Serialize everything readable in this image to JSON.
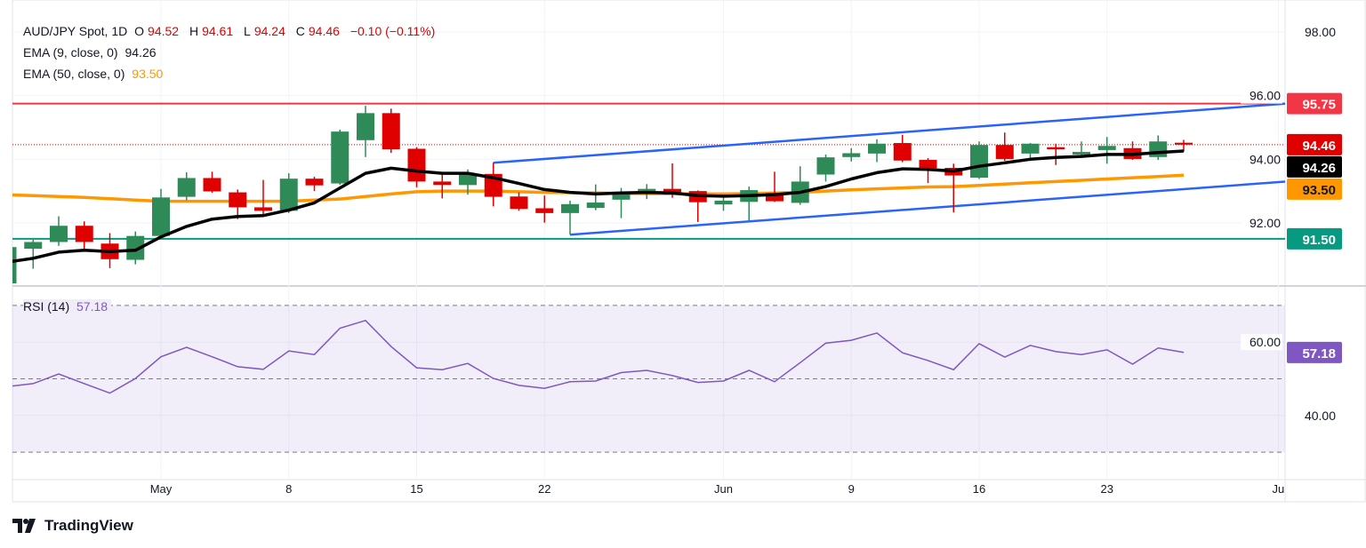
{
  "legend": {
    "symbol": "AUD/JPY Spot, 1D",
    "open_label": "O",
    "open": "94.52",
    "high_label": "H",
    "high": "94.61",
    "low_label": "L",
    "low": "94.24",
    "close_label": "C",
    "close": "94.46",
    "change": "−0.10 (−0.11%)",
    "ema9_label": "EMA (9, close, 0)",
    "ema9_value": "94.26",
    "ema50_label": "EMA (50, close, 0)",
    "ema50_value": "93.50",
    "rsi_label": "RSI (14)",
    "rsi_value": "57.18"
  },
  "branding": {
    "name": "TradingView"
  },
  "colors": {
    "up": "#2e8b57",
    "down": "#e00000",
    "ema9": "#000000",
    "ema50": "#ff9800",
    "channel": "#2962ff",
    "resistance": "#f23645",
    "support": "#089981",
    "rsi": "#7e57c2"
  },
  "chart_data": {
    "type": "candlestick",
    "title": "AUD/JPY Spot, 1D",
    "ylim": [
      89.8,
      98.9
    ],
    "y_ticks": [
      "98.00",
      "96.00",
      "94.00",
      "92.00"
    ],
    "x_ticks": [
      {
        "label": "May",
        "bar": 0
      },
      {
        "label": "8",
        "bar": 5
      },
      {
        "label": "15",
        "bar": 10
      },
      {
        "label": "22",
        "bar": 15
      },
      {
        "label": "Jun",
        "bar": 22
      },
      {
        "label": "9",
        "bar": 27
      },
      {
        "label": "16",
        "bar": 32
      },
      {
        "label": "23",
        "bar": 37
      },
      {
        "label": "Ju",
        "bar": 43.7
      }
    ],
    "first_bar": -6,
    "candles": [
      [
        90.1,
        91.25,
        90.0,
        91.24
      ],
      [
        91.19,
        91.47,
        90.56,
        91.4
      ],
      [
        91.4,
        92.21,
        91.28,
        91.91
      ],
      [
        91.91,
        92.05,
        91.19,
        91.4
      ],
      [
        91.35,
        91.68,
        90.58,
        90.86
      ],
      [
        90.84,
        91.73,
        90.7,
        91.59
      ],
      [
        91.59,
        93.07,
        91.55,
        92.8
      ],
      [
        92.82,
        93.59,
        92.71,
        93.41
      ],
      [
        93.41,
        93.61,
        92.95,
        92.99
      ],
      [
        92.96,
        93.05,
        92.12,
        92.49
      ],
      [
        92.49,
        93.35,
        92.21,
        92.38
      ],
      [
        92.38,
        93.56,
        92.31,
        93.39
      ],
      [
        93.39,
        93.45,
        93.0,
        93.18
      ],
      [
        93.24,
        94.93,
        93.2,
        94.87
      ],
      [
        94.6,
        95.68,
        94.07,
        95.45
      ],
      [
        95.45,
        95.59,
        94.2,
        94.31
      ],
      [
        94.33,
        94.38,
        93.12,
        93.3
      ],
      [
        93.3,
        93.52,
        92.77,
        93.19
      ],
      [
        93.19,
        93.68,
        92.89,
        93.54
      ],
      [
        93.54,
        93.89,
        92.52,
        92.82
      ],
      [
        92.83,
        92.96,
        92.38,
        92.44
      ],
      [
        92.46,
        92.86,
        92.01,
        92.31
      ],
      [
        92.31,
        92.7,
        91.63,
        92.59
      ],
      [
        92.47,
        93.21,
        92.4,
        92.64
      ],
      [
        92.73,
        93.1,
        92.15,
        92.98
      ],
      [
        92.98,
        93.22,
        92.75,
        93.07
      ],
      [
        93.07,
        93.87,
        92.79,
        92.89
      ],
      [
        93.0,
        93.02,
        92.03,
        92.65
      ],
      [
        92.58,
        92.86,
        92.38,
        92.7
      ],
      [
        92.66,
        93.14,
        92.07,
        93.03
      ],
      [
        92.94,
        93.61,
        92.66,
        92.68
      ],
      [
        92.63,
        93.78,
        92.57,
        93.3
      ],
      [
        93.52,
        94.15,
        93.3,
        94.06
      ],
      [
        94.07,
        94.35,
        93.93,
        94.19
      ],
      [
        94.18,
        94.63,
        93.91,
        94.49
      ],
      [
        94.51,
        94.77,
        93.91,
        93.96
      ],
      [
        93.98,
        94.04,
        93.25,
        93.72
      ],
      [
        93.73,
        93.86,
        92.33,
        93.49
      ],
      [
        93.42,
        94.56,
        93.38,
        94.45
      ],
      [
        94.45,
        94.84,
        93.95,
        94.01
      ],
      [
        94.18,
        94.51,
        93.95,
        94.49
      ],
      [
        94.38,
        94.49,
        93.82,
        94.31
      ],
      [
        94.15,
        94.56,
        94.09,
        94.23
      ],
      [
        94.29,
        94.7,
        93.86,
        94.42
      ],
      [
        94.35,
        94.56,
        93.98,
        94.01
      ],
      [
        94.07,
        94.75,
        93.98,
        94.56
      ],
      [
        94.52,
        94.61,
        94.24,
        94.46
      ]
    ],
    "candle_fields": [
      "open",
      "high",
      "low",
      "close"
    ],
    "ema9": [
      90.77,
      90.89,
      91.08,
      91.14,
      91.1,
      91.14,
      91.56,
      91.89,
      92.12,
      92.2,
      92.23,
      92.4,
      92.63,
      93.1,
      93.56,
      93.72,
      93.63,
      93.56,
      93.56,
      93.42,
      93.24,
      93.05,
      92.96,
      92.91,
      92.94,
      92.96,
      92.94,
      92.86,
      92.84,
      92.86,
      92.89,
      92.96,
      93.14,
      93.38,
      93.58,
      93.7,
      93.68,
      93.63,
      93.78,
      93.89,
      94.0,
      94.06,
      94.09,
      94.15,
      94.15,
      94.21,
      94.26
    ],
    "ema50": [
      92.88,
      92.86,
      92.83,
      92.8,
      92.76,
      92.72,
      92.68,
      92.68,
      92.68,
      92.68,
      92.68,
      92.68,
      92.72,
      92.75,
      92.83,
      92.91,
      92.98,
      93.0,
      93.0,
      93.0,
      92.98,
      92.96,
      92.95,
      92.94,
      92.93,
      92.92,
      92.92,
      92.91,
      92.91,
      92.92,
      92.94,
      92.96,
      93.0,
      93.04,
      93.07,
      93.1,
      93.13,
      93.14,
      93.18,
      93.22,
      93.26,
      93.3,
      93.34,
      93.38,
      93.42,
      93.46,
      93.5
    ],
    "horizontal_lines": [
      {
        "label": "95.75",
        "price": 95.75,
        "color": "#f23645"
      },
      {
        "label": "91.50",
        "price": 91.5,
        "color": "#089981"
      }
    ],
    "last_price_line": 94.46,
    "channel": [
      {
        "from": {
          "bar": 13,
          "price": 93.89
        },
        "to": {
          "bar": 44.0,
          "price": 95.75
        }
      },
      {
        "from": {
          "bar": 16,
          "price": 91.63
        },
        "to": {
          "bar": 44.0,
          "price": 93.3
        }
      }
    ],
    "price_labels": [
      {
        "label": "95.75",
        "price": 95.75,
        "bg": "#f23645",
        "fg": "#ffffff"
      },
      {
        "label": "94.46",
        "price": 94.46,
        "bg": "#e00000",
        "fg": "#ffffff",
        "offset": 0
      },
      {
        "label": "94.26",
        "price": 94.26,
        "bg": "#000000",
        "fg": "#ffffff",
        "offset": 0
      },
      {
        "label": "93.50",
        "price": 93.5,
        "bg": "#ff9800",
        "fg": "#131722"
      },
      {
        "label": "91.50",
        "price": 91.5,
        "bg": "#089981",
        "fg": "#ffffff"
      }
    ],
    "rsi": {
      "ylim": [
        28,
        74
      ],
      "y_ticks": [
        "60.00",
        "40.00"
      ],
      "bands": [
        70,
        50,
        30
      ],
      "values": [
        47.9,
        48.7,
        51.3,
        48.7,
        46.1,
        50.1,
        56.0,
        58.6,
        56.0,
        53.3,
        52.6,
        57.6,
        56.6,
        63.8,
        65.9,
        58.8,
        53.0,
        52.5,
        54.2,
        50.1,
        48.2,
        47.4,
        49.2,
        49.4,
        51.7,
        52.3,
        50.9,
        49.0,
        49.4,
        52.3,
        49.2,
        54.4,
        59.7,
        60.5,
        62.5,
        57.1,
        55.0,
        52.5,
        59.6,
        55.9,
        59.1,
        57.4,
        56.6,
        57.9,
        54.0,
        58.4,
        57.18
      ],
      "last_label": "57.18"
    }
  }
}
